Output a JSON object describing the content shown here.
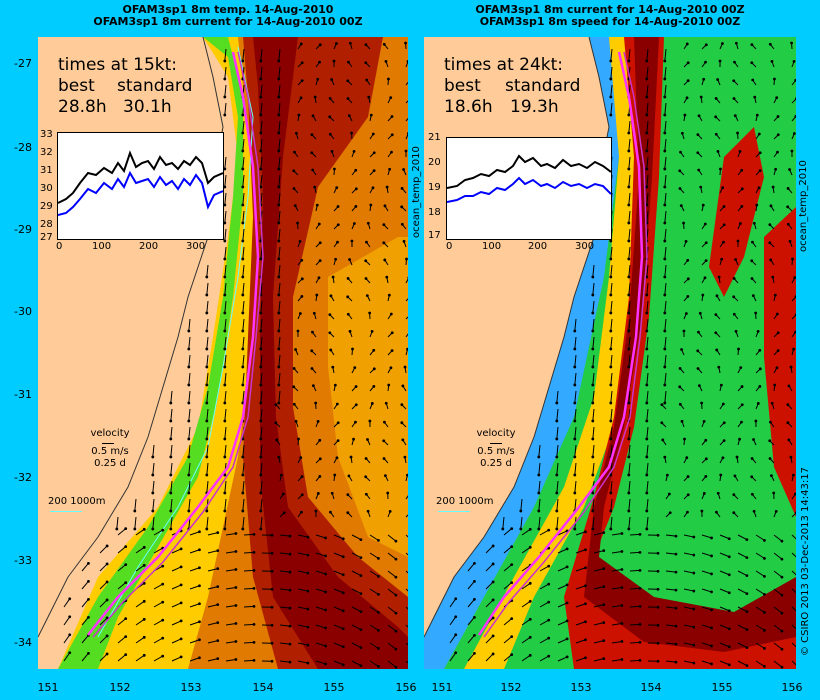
{
  "left": {
    "header1": "OFAM3sp1 8m temp. 14-Aug-2010",
    "header2": "OFAM3sp1 8m current for 14-Aug-2010 00Z",
    "times_title": "times at 15kt:",
    "best_label": "best",
    "standard_label": "standard",
    "best_value": "28.8h",
    "standard_value": "30.1h",
    "inset_yticks": [
      "33",
      "32",
      "31",
      "30",
      "29",
      "28",
      "27"
    ],
    "inset_xticks": [
      "0",
      "100",
      "200",
      "300"
    ],
    "velocity_label": "velocity",
    "velocity_scale": "0.5 m/s",
    "velocity_time": "0.25 d",
    "depth_legend": "200  1000m"
  },
  "right": {
    "header1": "OFAM3sp1 8m current for 14-Aug-2010 00Z",
    "header2": "OFAM3sp1 8m speed for 14-Aug-2010 00Z",
    "times_title": "times at 24kt:",
    "best_label": "best",
    "standard_label": "standard",
    "best_value": "18.6h",
    "standard_value": "19.3h",
    "inset_yticks": [
      "21",
      "20",
      "19",
      "18",
      "17"
    ],
    "inset_xticks": [
      "0",
      "100",
      "200",
      "300"
    ],
    "velocity_label": "velocity",
    "velocity_scale": "0.5 m/s",
    "velocity_time": "0.25 d",
    "depth_legend": "200  1000m",
    "side_label_left": "ocean_temp_2010",
    "side_label_right": "ocean_temp_2010"
  },
  "lat_ticks": [
    "-27",
    "-28",
    "-29",
    "-30",
    "-31",
    "-32",
    "-33",
    "-34"
  ],
  "lon_ticks": [
    "151",
    "152",
    "153",
    "154",
    "155",
    "156"
  ],
  "credit": "© CSIRO 2013   03-Dec-2013 14:43:17",
  "colors": {
    "background": "#00ccff",
    "land": "#ffcc99",
    "route": "#ff33ff",
    "coast": "#66ffff"
  }
}
